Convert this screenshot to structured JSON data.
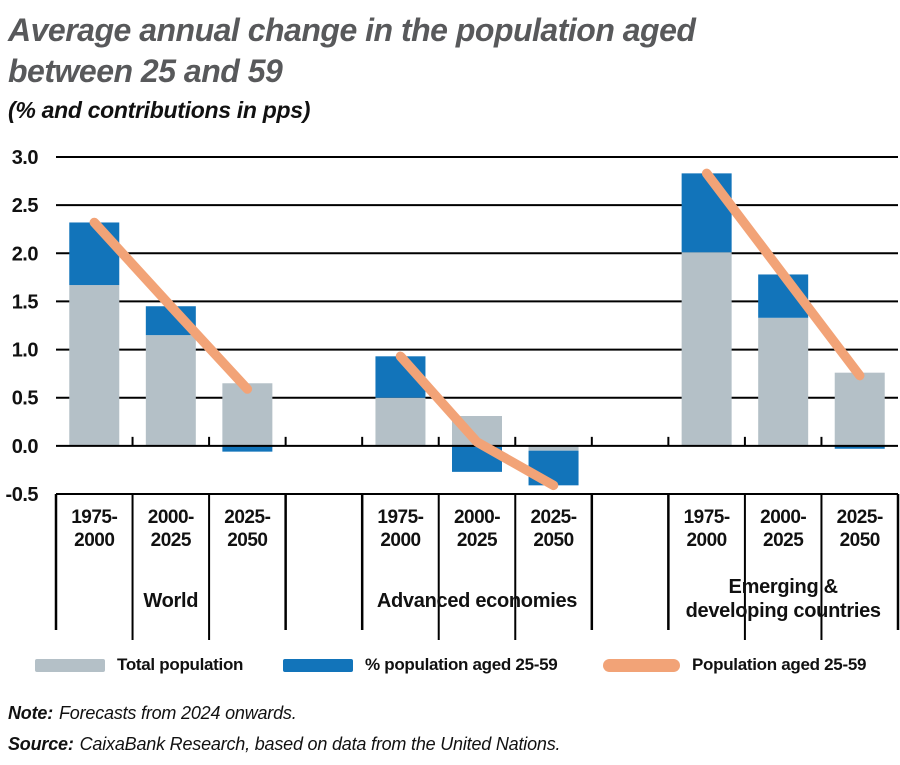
{
  "header": {
    "title_line1": "Average annual change in the population aged",
    "title_line2": "between 25 and 59",
    "subtitle": "(% and contributions in pps)"
  },
  "chart_data": {
    "type": "bar",
    "variant": "stacked-bars-with-line-overlay",
    "title": "Average annual change in the population aged between 25 and 59",
    "ylabel": "% and contributions in pps",
    "ylim": [
      -0.5,
      3.0
    ],
    "ytick_interval": 0.5,
    "ytick_labels": [
      "3.0",
      "2.5",
      "2.0",
      "1.5",
      "1.0",
      "0.5",
      "0.0",
      "-0.5"
    ],
    "grid": "horizontal",
    "groups": [
      "World",
      "Advanced economies",
      "Emerging &\ndeveloping countries"
    ],
    "categories": [
      "1975-2000",
      "2000-2025",
      "2025-2050"
    ],
    "series": [
      {
        "name": "Total population",
        "type": "bar",
        "color": "#b4c0c7",
        "values": [
          [
            1.67,
            1.15,
            0.65
          ],
          [
            0.5,
            0.31,
            -0.05
          ],
          [
            2.01,
            1.33,
            0.76
          ]
        ]
      },
      {
        "name": "% population aged 25-59",
        "type": "bar",
        "color": "#1274ba",
        "values": [
          [
            0.65,
            0.3,
            -0.06
          ],
          [
            0.43,
            -0.27,
            -0.36
          ],
          [
            0.82,
            0.45,
            -0.03
          ]
        ]
      },
      {
        "name": "Population aged 25-59",
        "type": "line",
        "color": "#f2a377",
        "values": [
          [
            2.32,
            1.45,
            0.59
          ],
          [
            0.93,
            0.04,
            -0.41
          ],
          [
            2.83,
            1.78,
            0.73
          ]
        ]
      }
    ]
  },
  "legend": {
    "items": [
      {
        "label": "Total population",
        "color": "#b4c0c7",
        "shape": "rect"
      },
      {
        "label": "% population aged 25-59",
        "color": "#1274ba",
        "shape": "rect"
      },
      {
        "label": "Population aged 25-59",
        "color": "#f2a377",
        "shape": "line"
      }
    ]
  },
  "note": {
    "prefix": "Note:",
    "text": "Forecasts from 2024 onwards."
  },
  "source": {
    "prefix": "Source:",
    "text": "CaixaBank Research, based on data from the United Nations."
  }
}
